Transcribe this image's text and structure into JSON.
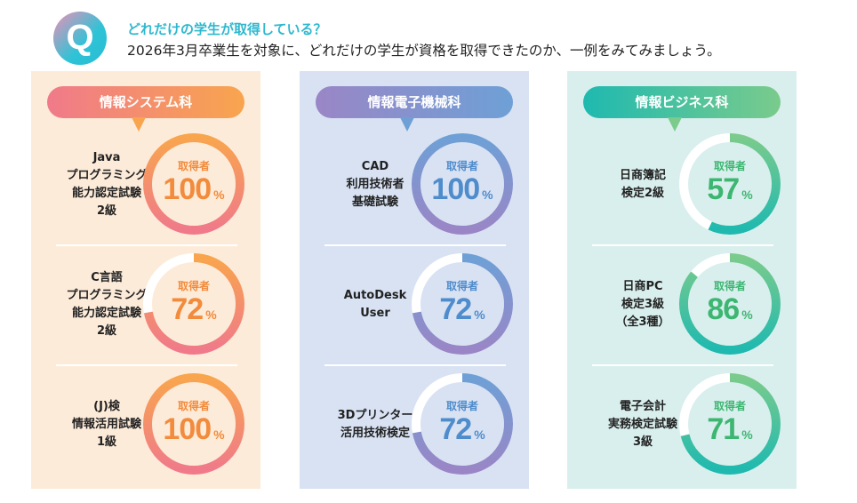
{
  "header": {
    "icon_letter": "Q",
    "title": "どれだけの学生が取得している？",
    "subtitle": "2026年3月卒業生を対象に、どれだけの学生が資格を取得できたのか、一例をみてみましょう。"
  },
  "ring_label": "取得者",
  "percent_sign": "%",
  "departments": [
    {
      "name": "情報システム科",
      "bg": "#fdebd9",
      "from": "#f07a8a",
      "to": "#f8a54e",
      "text": "#f28b3c",
      "items": [
        {
          "label": "Java\nプログラミング\n能力認定試験\n2級",
          "value": 100
        },
        {
          "label": "C言語\nプログラミング\n能力認定試験\n2級",
          "value": 72
        },
        {
          "label": "(J)検\n情報活用試験\n1級",
          "value": 100
        }
      ]
    },
    {
      "name": "情報電子機械科",
      "bg": "#d8e2f3",
      "from": "#9a86c6",
      "to": "#6ea0d6",
      "text": "#4f8ccc",
      "items": [
        {
          "label": "CAD\n利用技術者\n基礎試験",
          "value": 100
        },
        {
          "label": "AutoDesk\nUser",
          "value": 72
        },
        {
          "label": "3Dプリンター\n活用技術検定",
          "value": 72
        }
      ]
    },
    {
      "name": "情報ビジネス科",
      "bg": "#d9efed",
      "from": "#1fb9b0",
      "to": "#7acb8c",
      "text": "#3db672",
      "items": [
        {
          "label": "日商簿記\n検定2級",
          "value": 57
        },
        {
          "label": "日商PC\n検定3級\n（全3種）",
          "value": 86
        },
        {
          "label": "電子会計\n実務検定試験\n3級",
          "value": 71
        }
      ]
    }
  ]
}
